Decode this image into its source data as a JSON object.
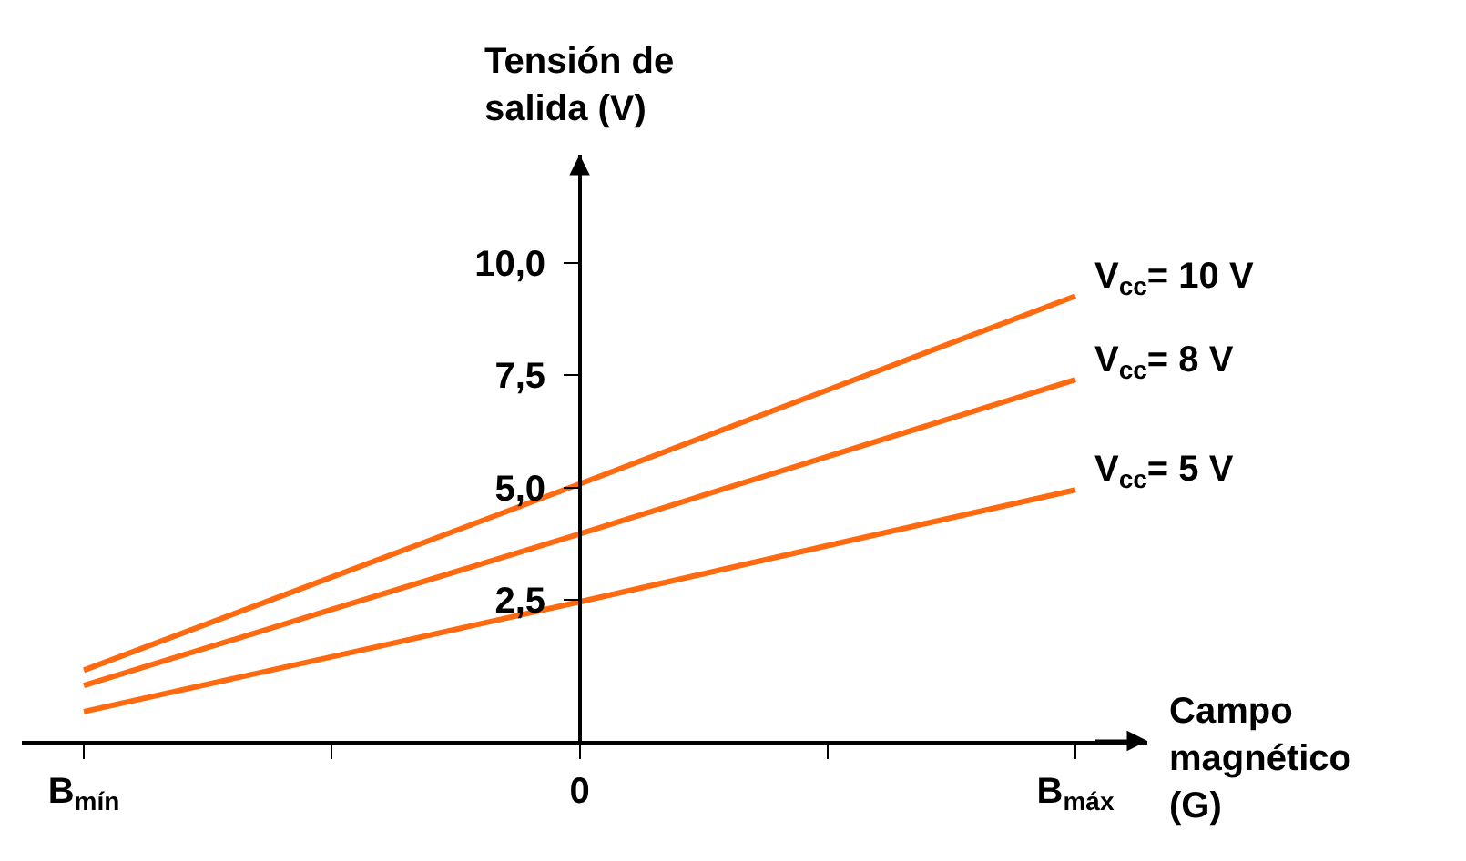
{
  "chart_data": {
    "type": "line",
    "xlabel": "Campo\nmagnético\n(G)",
    "ylabel": "Tensión de\nsalida (V)",
    "categories": [
      "B$_{mín}$",
      null,
      "0",
      null,
      "B$_{máx}$"
    ],
    "series": [
      {
        "name": "V$_{cc}$= 10 V",
        "color": "#ff6a10",
        "values": [
          0.94,
          3.01,
          5.08,
          7.17,
          9.26
        ]
      },
      {
        "name": "V$_{cc}$= 8 V",
        "color": "#ff6a10",
        "values": [
          0.6,
          2.29,
          3.97,
          5.69,
          7.4
        ]
      },
      {
        "name": "V$_{cc}$= 5 V",
        "color": "#ff6a10",
        "values": [
          0.02,
          1.24,
          2.46,
          3.71,
          4.95
        ]
      }
    ],
    "ylim": [
      -0.63,
      12.4
    ],
    "yticks": [
      {
        "value": 2.5,
        "label": "2,5"
      },
      {
        "value": 5,
        "label": "5,0"
      },
      {
        "value": 7.5,
        "label": "7,5"
      },
      {
        "value": 10,
        "label": "10,0"
      }
    ],
    "grid": false,
    "legend": false,
    "marker": "none",
    "line_style": "solid"
  }
}
